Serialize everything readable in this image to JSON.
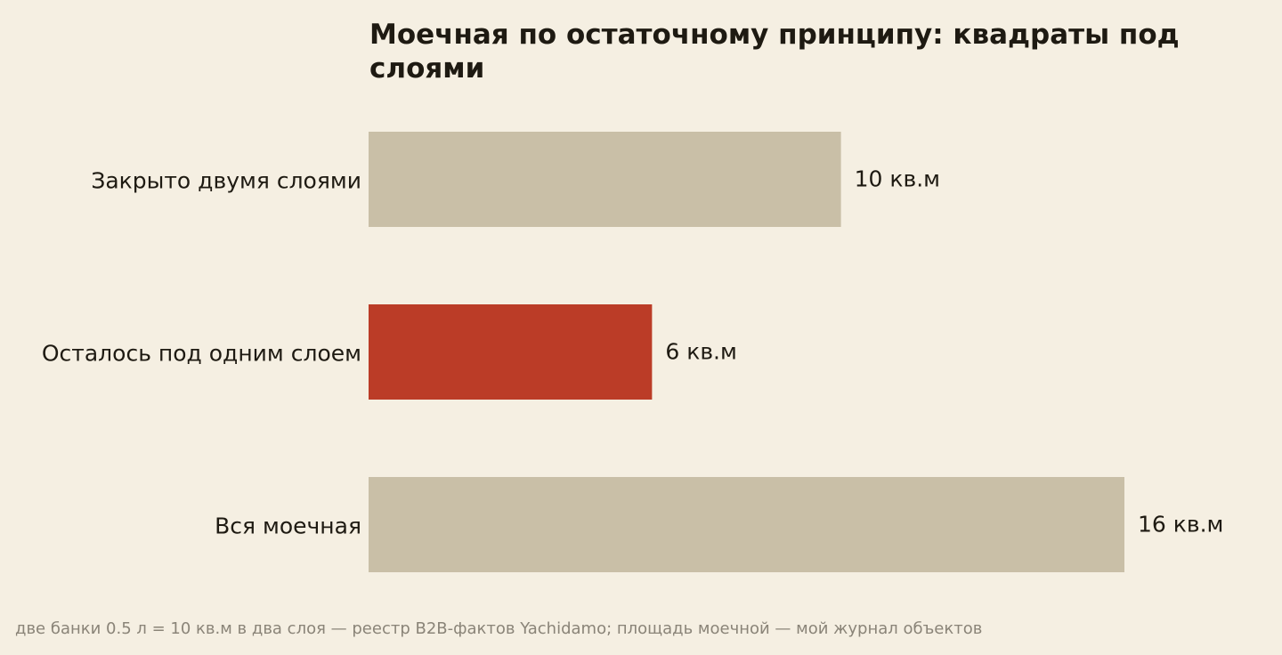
{
  "chart_data": {
    "type": "bar",
    "orientation": "horizontal",
    "title": "Моечная по остаточному принципу: квадраты под слоями",
    "categories": [
      "Закрыто двумя слоями",
      "Осталось под одним слоем",
      "Вся моечная"
    ],
    "values": [
      10,
      6,
      16
    ],
    "value_labels": [
      "10 кв.м",
      "6 кв.м",
      "16 кв.м"
    ],
    "unit": "кв.м",
    "colors": [
      "#c9bfa7",
      "#bb3c27",
      "#c9bfa7"
    ],
    "xlim": [
      0,
      16
    ],
    "grid": false,
    "axes_visible": false,
    "legend": "none"
  },
  "footnote": "две банки 0.5 л = 10 кв.м в два слоя — реестр B2B-фактов Yachidamo; площадь моечной — мой журнал объектов",
  "colors": {
    "background": "#f5efe2",
    "text": "#1e1a12",
    "footnote": "#8a8478",
    "highlight": "#bb3c27",
    "neutral": "#c9bfa7"
  }
}
